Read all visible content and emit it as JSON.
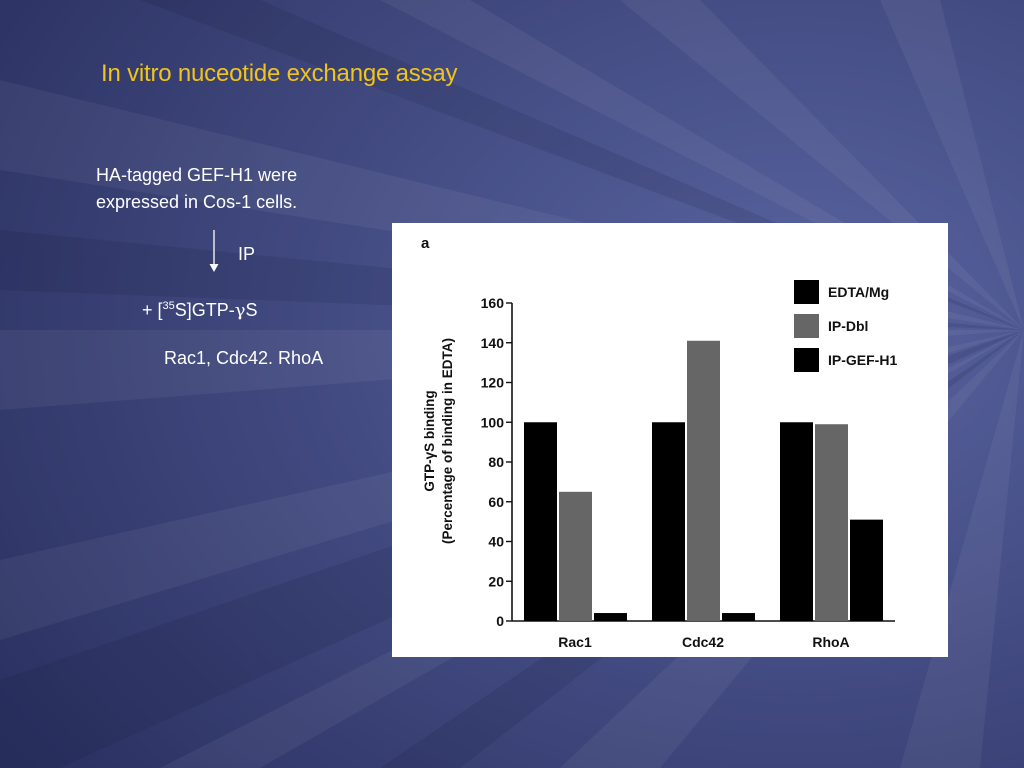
{
  "slide": {
    "title": "In vitro nuceotide exchange assay",
    "intro_line1": "HA-tagged GEF-H1 were",
    "intro_line2": "expressed in Cos-1 cells.",
    "ip_label": "IP",
    "reagent_prefix": "+ [",
    "reagent_isotope": "35",
    "reagent_suffix": "S]GTP-",
    "reagent_gamma": "γ",
    "reagent_end": "S",
    "proteins": "Rac1, Cdc42. RhoA",
    "colors": {
      "title": "#f0c419",
      "text": "#ffffff",
      "background": "#3d4577"
    }
  },
  "chart_data": {
    "type": "bar",
    "panel_label": "a",
    "categories": [
      "Rac1",
      "Cdc42",
      "RhoA"
    ],
    "series": [
      {
        "name": "EDTA/Mg",
        "color": "#000000",
        "values": [
          100,
          100,
          100
        ]
      },
      {
        "name": "IP-Dbl",
        "color": "#666666",
        "values": [
          65,
          141,
          99
        ]
      },
      {
        "name": "IP-GEF-H1",
        "color": "#000000",
        "values": [
          4,
          4,
          51
        ]
      }
    ],
    "ylabel_line1": "GTP-γS binding",
    "ylabel_line2": "(Percentage of binding in EDTA)",
    "xlabel": "",
    "ylim": [
      0,
      160
    ],
    "yticks": [
      0,
      20,
      40,
      60,
      80,
      100,
      120,
      140,
      160
    ],
    "legend_position": "top-right",
    "grid": false
  }
}
